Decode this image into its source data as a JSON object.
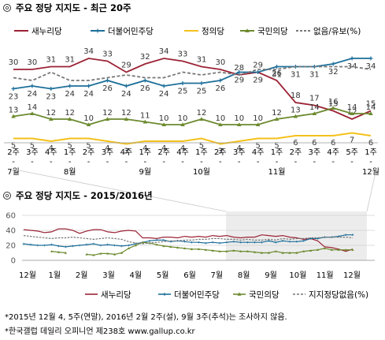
{
  "chart_data": [
    {
      "type": "line",
      "title": "주요 정당 지지도 - 최근 20주",
      "xlabel": "",
      "ylabel": "",
      "ylim": [
        0,
        40
      ],
      "x": [
        {
          "week": "2주",
          "month": "7월"
        },
        {
          "week": "3주",
          "month": ""
        },
        {
          "week": "4주",
          "month": ""
        },
        {
          "week": "1주",
          "month": "8월"
        },
        {
          "week": "2주",
          "month": ""
        },
        {
          "week": "3주",
          "month": ""
        },
        {
          "week": "4주",
          "month": ""
        },
        {
          "week": "1주",
          "month": "9월"
        },
        {
          "week": "2주",
          "month": ""
        },
        {
          "week": "4주",
          "month": ""
        },
        {
          "week": "1주",
          "month": "10월"
        },
        {
          "week": "2주",
          "month": ""
        },
        {
          "week": "3주",
          "month": ""
        },
        {
          "week": "4주",
          "month": ""
        },
        {
          "week": "1주",
          "month": "11월"
        },
        {
          "week": "2주",
          "month": ""
        },
        {
          "week": "3주",
          "month": ""
        },
        {
          "week": "4주",
          "month": ""
        },
        {
          "week": "5주",
          "month": ""
        },
        {
          "week": "1주",
          "month": "12월"
        }
      ],
      "legend_position": "top",
      "grid": false,
      "series": [
        {
          "name": "새누리당",
          "color": "#9b2335",
          "values": [
            30,
            30,
            31,
            31,
            34,
            33,
            29,
            32,
            34,
            33,
            31,
            30,
            28,
            29,
            26,
            18,
            17,
            15,
            12,
            15
          ]
        },
        {
          "name": "더불어민주당",
          "color": "#1d6f9a",
          "values": [
            23,
            24,
            23,
            24,
            24,
            26,
            24,
            26,
            24,
            25,
            25,
            26,
            29,
            29,
            31,
            31,
            31,
            32,
            34,
            34
          ]
        },
        {
          "name": "정의당",
          "color": "#f3c11b",
          "values": [
            5,
            5,
            4,
            5,
            5,
            4,
            3,
            4,
            4,
            4,
            5,
            3,
            4,
            5,
            5,
            6,
            6,
            6,
            7,
            6
          ]
        },
        {
          "name": "국민의당",
          "color": "#6c8a2e",
          "values": [
            13,
            14,
            12,
            12,
            10,
            12,
            12,
            11,
            10,
            10,
            12,
            10,
            10,
            10,
            12,
            13,
            14,
            16,
            14,
            14
          ]
        },
        {
          "name": "없음/유보(%)",
          "color": "#777777",
          "dashed": true,
          "values": [
            27,
            26,
            29,
            26,
            26,
            27,
            28,
            27,
            27,
            29,
            28,
            29,
            28,
            30,
            30,
            31,
            31,
            31,
            31,
            30
          ]
        }
      ]
    },
    {
      "type": "line",
      "title": "주요 정당 지지도 - 2015/2016년",
      "xlabel": "",
      "ylabel": "",
      "ylim": [
        0,
        60
      ],
      "yticks": [
        "0",
        "20",
        "40",
        "60"
      ],
      "months": [
        "12월",
        "1월",
        "2월",
        "3월",
        "4월",
        "5월",
        "6월",
        "7월",
        "8월",
        "9월",
        "10월",
        "11월",
        "12월"
      ],
      "highlight_range": [
        "7월",
        "12월"
      ],
      "legend_position": "bottom",
      "series": [
        {
          "name": "새누리당",
          "color": "#9b2335",
          "values": [
            41,
            40,
            39,
            37,
            38,
            42,
            42,
            40,
            36,
            39,
            41,
            41,
            38,
            37,
            39,
            40,
            39,
            30,
            30,
            29,
            31,
            31,
            30,
            32,
            31,
            32,
            31,
            33,
            32,
            33,
            31,
            30,
            31,
            31,
            34,
            33,
            32,
            33,
            31,
            30,
            28,
            29,
            26,
            18,
            17,
            15,
            12,
            15
          ]
        },
        {
          "name": "더불어민주당",
          "color": "#1d6f9a",
          "values": [
            22,
            21,
            20,
            20,
            21,
            19,
            18,
            19,
            20,
            21,
            22,
            20,
            21,
            20,
            19,
            20,
            22,
            24,
            26,
            27,
            27,
            25,
            26,
            25,
            24,
            24,
            23,
            24,
            23,
            24,
            25,
            24,
            24,
            24,
            24,
            26,
            24,
            26,
            25,
            25,
            26,
            29,
            29,
            31,
            31,
            32,
            34,
            34
          ]
        },
        {
          "name": "국민의당",
          "color": "#6c8a2e",
          "values": [
            null,
            null,
            null,
            null,
            12,
            11,
            10,
            null,
            null,
            8,
            7,
            9,
            9,
            8,
            10,
            16,
            20,
            24,
            23,
            21,
            19,
            18,
            17,
            16,
            15,
            15,
            14,
            13,
            12,
            12,
            13,
            12,
            12,
            11,
            10,
            10,
            12,
            10,
            10,
            10,
            12,
            13,
            14,
            16,
            14,
            14,
            14,
            14
          ]
        },
        {
          "name": "지지정당없음(%)",
          "color": "#777777",
          "dashed": true,
          "values": [
            33,
            32,
            31,
            30,
            29,
            30,
            30,
            31,
            30,
            29,
            28,
            29,
            30,
            29,
            28,
            25,
            23,
            22,
            23,
            24,
            25,
            26,
            26,
            27,
            27,
            28,
            28,
            29,
            29,
            28,
            28,
            27,
            28,
            27,
            27,
            28,
            27,
            29,
            28,
            29,
            29,
            30,
            30,
            31,
            31,
            31,
            31,
            30
          ]
        }
      ]
    }
  ],
  "footnotes": [
    "*2015년 12월 4, 5주(연말), 2016년 2월 2주(설), 9월 3주(추석)는 조사하지 않음.",
    "*한국갤럽 데일리 오피니언 제238호 www.gallup.co.kr"
  ],
  "icon": "copyright-circle-icon"
}
